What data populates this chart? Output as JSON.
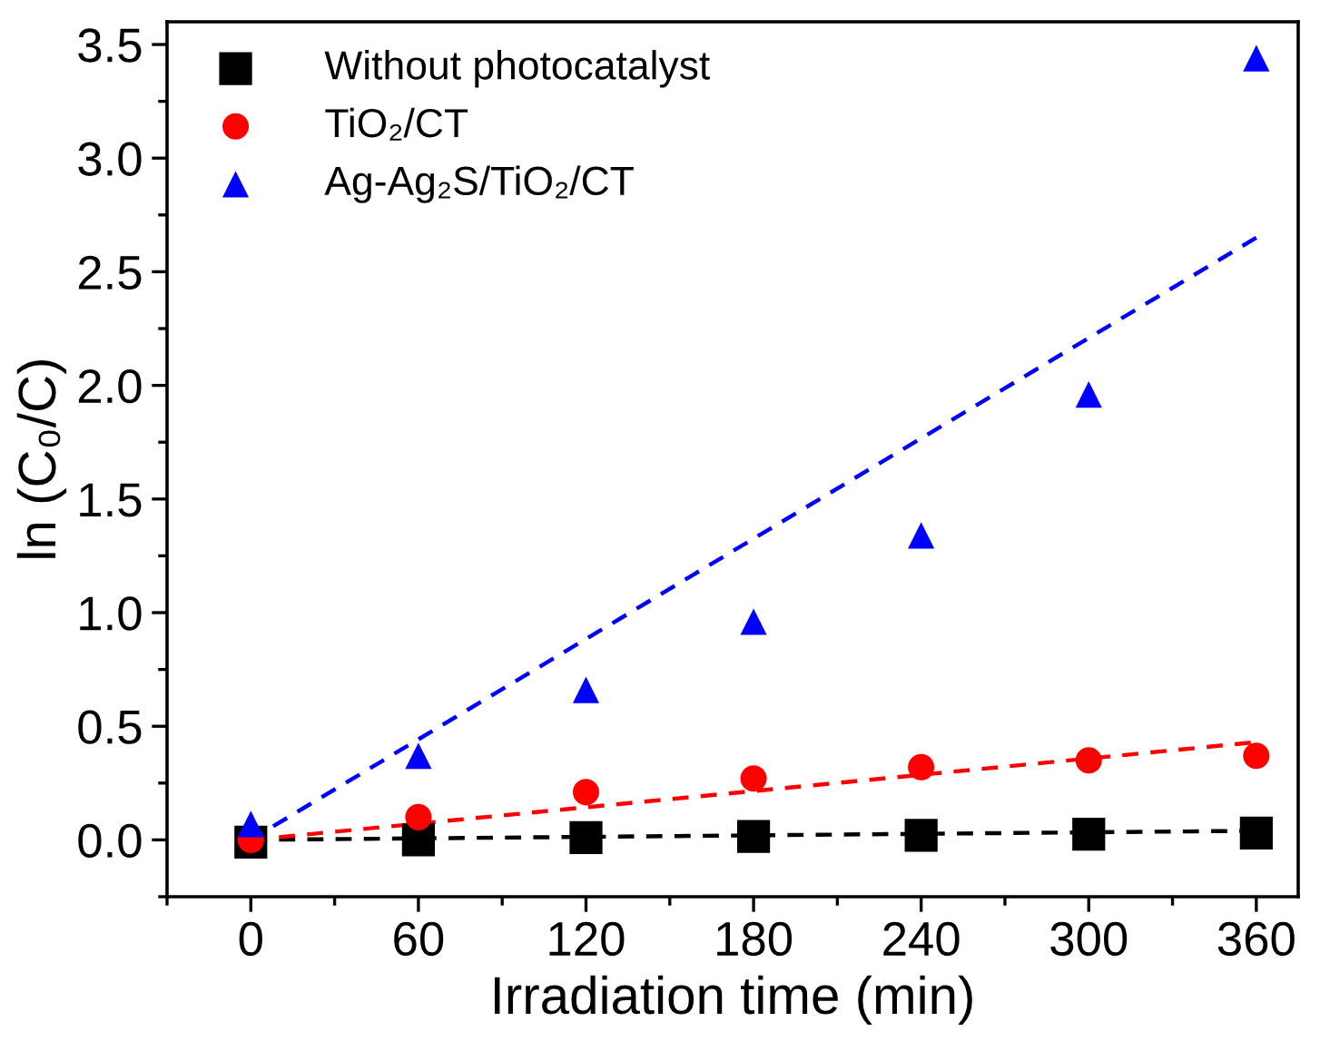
{
  "chart_data": {
    "type": "scatter",
    "xlabel": "Irradiation time (min)",
    "ylabel": "ln (C₀/C)",
    "x": [
      0,
      60,
      120,
      180,
      240,
      300,
      360
    ],
    "series": [
      {
        "name": "Without photocatalyst",
        "color": "#000000",
        "marker": "square",
        "values": [
          -0.01,
          0.0,
          0.01,
          0.015,
          0.02,
          0.025,
          0.03
        ]
      },
      {
        "name": "TiO₂/CT",
        "color": "#ff0000",
        "marker": "circle",
        "values": [
          0.0,
          0.1,
          0.21,
          0.27,
          0.32,
          0.35,
          0.37
        ]
      },
      {
        "name": "Ag-Ag₂S/TiO₂/CT",
        "color": "#0000ff",
        "marker": "triangle",
        "values": [
          0.07,
          0.37,
          0.66,
          0.96,
          1.34,
          1.96,
          3.44
        ]
      },
      {
        "type": "line",
        "x": [
          0,
          360
        ],
        "color": "#000000",
        "line_style": "dashed",
        "values": [
          0.0,
          0.04
        ]
      },
      {
        "type": "line",
        "x": [
          0,
          360
        ],
        "color": "#ff0000",
        "line_style": "dashed",
        "values": [
          0.0,
          0.43
        ]
      },
      {
        "type": "line",
        "x": [
          8,
          360
        ],
        "color": "#0000ff",
        "line_style": "dashed",
        "values": [
          0.06,
          2.65
        ]
      }
    ],
    "xlim": [
      -30,
      375
    ],
    "ylim": [
      -0.25,
      3.6
    ],
    "xticks": [
      0,
      60,
      120,
      180,
      240,
      300,
      360
    ],
    "yticks": [
      {
        "value": 0,
        "label": "0.0"
      },
      0.5,
      {
        "value": 1,
        "label": "1.0"
      },
      1.5,
      {
        "value": 2,
        "label": "2.0"
      },
      2.5,
      {
        "value": 3,
        "label": "3.0"
      },
      3.5
    ],
    "grid": false,
    "legend": "top left"
  }
}
